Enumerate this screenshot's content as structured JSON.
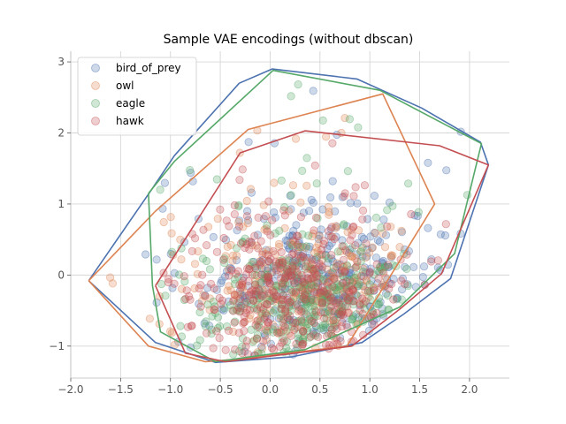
{
  "chart_data": {
    "type": "scatter",
    "title": "Sample VAE encodings (without dbscan)",
    "xlabel": "",
    "ylabel": "",
    "xlim": [
      -2.0,
      2.4
    ],
    "ylim": [
      -1.45,
      3.15
    ],
    "xticks": [
      -2.0,
      -1.5,
      -1.0,
      -0.5,
      0.0,
      0.5,
      1.0,
      1.5,
      2.0
    ],
    "xtick_labels": [
      "−2.0",
      "−1.5",
      "−1.0",
      "−0.5",
      "0.0",
      "0.5",
      "1.0",
      "1.5",
      "2.0"
    ],
    "yticks": [
      -1,
      0,
      1,
      2,
      3
    ],
    "ytick_labels": [
      "−1",
      "0",
      "1",
      "2",
      "3"
    ],
    "grid": true,
    "legend_position": "top-left",
    "series": [
      {
        "name": "bird_of_prey",
        "color": "#4c72b0",
        "hull": [
          [
            -1.82,
            -0.08
          ],
          [
            -1.19,
            1.2
          ],
          [
            -0.96,
            1.68
          ],
          [
            -0.31,
            2.7
          ],
          [
            0.02,
            2.9
          ],
          [
            0.87,
            2.76
          ],
          [
            1.52,
            2.35
          ],
          [
            2.11,
            1.87
          ],
          [
            2.19,
            1.55
          ],
          [
            1.81,
            -0.05
          ],
          [
            1.34,
            -0.55
          ],
          [
            0.92,
            -0.95
          ],
          [
            0.22,
            -1.15
          ],
          [
            -0.55,
            -1.23
          ],
          [
            -1.15,
            -0.95
          ],
          [
            -1.82,
            -0.08
          ]
        ]
      },
      {
        "name": "owl",
        "color": "#dd8452",
        "hull": [
          [
            -1.82,
            -0.08
          ],
          [
            -1.15,
            0.9
          ],
          [
            -0.22,
            2.05
          ],
          [
            1.13,
            2.55
          ],
          [
            1.65,
            1.0
          ],
          [
            1.3,
            0.2
          ],
          [
            0.77,
            -1.0
          ],
          [
            -0.3,
            -1.18
          ],
          [
            -0.65,
            -1.22
          ],
          [
            -1.22,
            -1.0
          ],
          [
            -1.82,
            -0.08
          ]
        ]
      },
      {
        "name": "eagle",
        "color": "#55a868",
        "hull": [
          [
            -1.22,
            1.15
          ],
          [
            -1.18,
            -0.15
          ],
          [
            -1.1,
            -0.8
          ],
          [
            -0.55,
            -1.22
          ],
          [
            -0.2,
            -1.15
          ],
          [
            0.35,
            -1.05
          ],
          [
            1.3,
            -0.45
          ],
          [
            1.85,
            0.3
          ],
          [
            2.12,
            1.85
          ],
          [
            1.1,
            2.6
          ],
          [
            0.03,
            2.88
          ],
          [
            -0.96,
            1.6
          ],
          [
            -1.22,
            1.15
          ]
        ]
      },
      {
        "name": "hawk",
        "color": "#c44e52",
        "hull": [
          [
            -1.15,
            -0.15
          ],
          [
            -0.3,
            1.72
          ],
          [
            0.35,
            2.03
          ],
          [
            1.7,
            1.82
          ],
          [
            2.19,
            1.55
          ],
          [
            1.72,
            0.02
          ],
          [
            1.3,
            -0.48
          ],
          [
            0.82,
            -1.0
          ],
          [
            -0.45,
            -1.22
          ],
          [
            -0.85,
            -1.1
          ],
          [
            -1.15,
            -0.15
          ]
        ]
      }
    ]
  }
}
